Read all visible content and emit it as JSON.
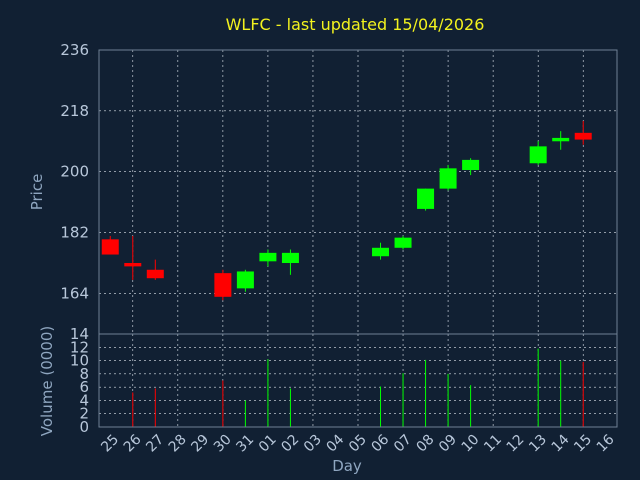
{
  "chart_data": {
    "type": "candlestick",
    "title": "WLFC - last updated 15/04/2026",
    "xlabel": "Day",
    "price_panel": {
      "ylabel": "Price",
      "ylim": [
        152,
        236
      ],
      "yticks": [
        164,
        182,
        200,
        218,
        236
      ]
    },
    "volume_panel": {
      "ylabel": "Volume (0000)",
      "ylim": [
        0,
        14
      ],
      "yticks": [
        0,
        2,
        4,
        6,
        8,
        10,
        12,
        14
      ]
    },
    "x_tick_labels": [
      "25",
      "26",
      "27",
      "28",
      "29",
      "30",
      "31",
      "01",
      "02",
      "03",
      "04",
      "05",
      "06",
      "07",
      "08",
      "09",
      "10",
      "11",
      "12",
      "13",
      "14",
      "15",
      "16"
    ],
    "grid": true,
    "colors": {
      "background": "#112033",
      "up": "#00ff00",
      "down": "#ff0000",
      "grid": "#dfe6ee",
      "title": "#f2f21e"
    },
    "candles": [
      {
        "day": "25",
        "open": 180,
        "high": 181,
        "low": 176,
        "close": 175.5,
        "volume": 0
      },
      {
        "day": "26",
        "open": 173,
        "high": 181,
        "low": 168,
        "close": 172,
        "volume": 5.2
      },
      {
        "day": "27",
        "open": 171,
        "high": 174,
        "low": 168,
        "close": 168.5,
        "volume": 5.8
      },
      {
        "day": "30",
        "open": 170,
        "high": 171,
        "low": 162,
        "close": 163,
        "volume": 7.0
      },
      {
        "day": "31",
        "open": 165.5,
        "high": 171,
        "low": 164.5,
        "close": 170.5,
        "volume": 4.0
      },
      {
        "day": "01",
        "open": 173.5,
        "high": 177,
        "low": 172,
        "close": 176,
        "volume": 10.2
      },
      {
        "day": "02",
        "open": 173,
        "high": 177,
        "low": 169.5,
        "close": 176,
        "volume": 5.8
      },
      {
        "day": "06",
        "open": 175,
        "high": 179,
        "low": 174,
        "close": 177.5,
        "volume": 6.1
      },
      {
        "day": "07",
        "open": 177.5,
        "high": 181,
        "low": 177,
        "close": 180.5,
        "volume": 8.1
      },
      {
        "day": "08",
        "open": 189,
        "high": 195,
        "low": 188.5,
        "close": 195,
        "volume": 10.1
      },
      {
        "day": "09",
        "open": 195,
        "high": 202,
        "low": 194.5,
        "close": 201,
        "volume": 8.0
      },
      {
        "day": "10",
        "open": 200.5,
        "high": 204,
        "low": 199,
        "close": 203.5,
        "volume": 6.3
      },
      {
        "day": "13",
        "open": 202.5,
        "high": 209,
        "low": 202,
        "close": 207.5,
        "volume": 11.8
      },
      {
        "day": "14",
        "open": 209,
        "high": 212,
        "low": 206.5,
        "close": 210,
        "volume": 10.0
      },
      {
        "day": "15",
        "open": 211.5,
        "high": 215,
        "low": 208,
        "close": 209.5,
        "volume": 9.8
      }
    ]
  }
}
